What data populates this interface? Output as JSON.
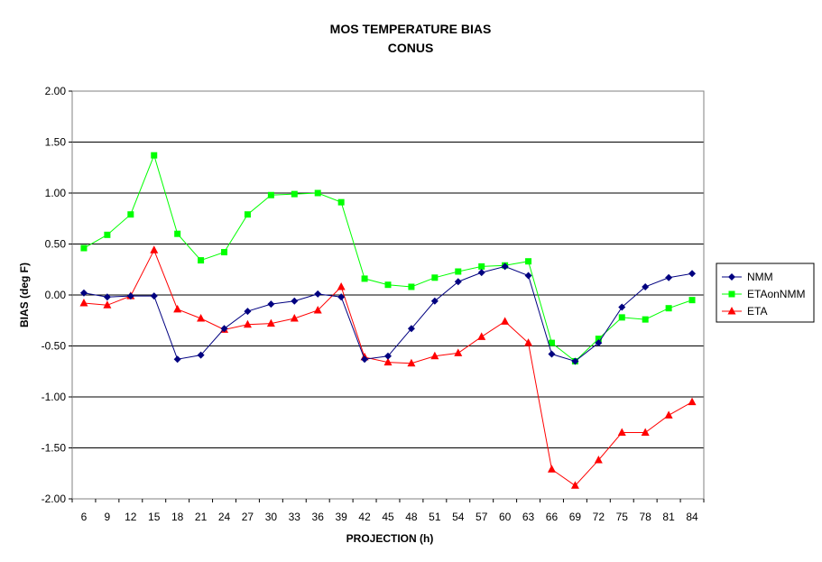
{
  "chart_data": {
    "type": "line",
    "title": "MOS TEMPERATURE BIAS",
    "subtitle": "CONUS",
    "xlabel": "PROJECTION (h)",
    "ylabel": "BIAS (deg F)",
    "ylim": [
      -2.0,
      2.0
    ],
    "yticks": [
      "2.00",
      "1.50",
      "1.00",
      "0.50",
      "0.00",
      "-0.50",
      "-1.00",
      "-1.50",
      "-2.00"
    ],
    "ytick_values": [
      2.0,
      1.5,
      1.0,
      0.5,
      0.0,
      -0.5,
      -1.0,
      -1.5,
      -2.0
    ],
    "grid": "horizontal",
    "legend_position": "right",
    "categories": [
      "6",
      "9",
      "12",
      "15",
      "18",
      "21",
      "24",
      "27",
      "30",
      "33",
      "36",
      "39",
      "42",
      "45",
      "48",
      "51",
      "54",
      "57",
      "60",
      "63",
      "66",
      "69",
      "72",
      "75",
      "78",
      "81",
      "84"
    ],
    "series": [
      {
        "name": "NMM",
        "color": "#000080",
        "marker": "diamond",
        "values": [
          0.02,
          -0.02,
          -0.01,
          -0.01,
          -0.63,
          -0.59,
          -0.33,
          -0.16,
          -0.09,
          -0.06,
          0.01,
          -0.02,
          -0.63,
          -0.6,
          -0.33,
          -0.06,
          0.13,
          0.22,
          0.28,
          0.19,
          -0.58,
          -0.65,
          -0.47,
          -0.12,
          0.08,
          0.17,
          0.21
        ]
      },
      {
        "name": "ETAonNMM",
        "color": "#00ff00",
        "marker": "square",
        "values": [
          0.46,
          0.59,
          0.79,
          1.37,
          0.6,
          0.34,
          0.42,
          0.79,
          0.98,
          0.99,
          1.0,
          0.91,
          0.16,
          0.1,
          0.08,
          0.17,
          0.23,
          0.28,
          0.29,
          0.33,
          -0.47,
          -0.65,
          -0.43,
          -0.22,
          -0.24,
          -0.13,
          -0.05
        ]
      },
      {
        "name": "ETA",
        "color": "#ff0000",
        "marker": "triangle",
        "values": [
          -0.08,
          -0.1,
          -0.01,
          0.44,
          -0.14,
          -0.23,
          -0.34,
          -0.29,
          -0.28,
          -0.23,
          -0.15,
          0.08,
          -0.61,
          -0.66,
          -0.67,
          -0.6,
          -0.57,
          -0.41,
          -0.26,
          -0.47,
          -1.71,
          -1.87,
          -1.62,
          -1.35,
          -1.35,
          -1.18,
          -1.05
        ]
      }
    ]
  }
}
